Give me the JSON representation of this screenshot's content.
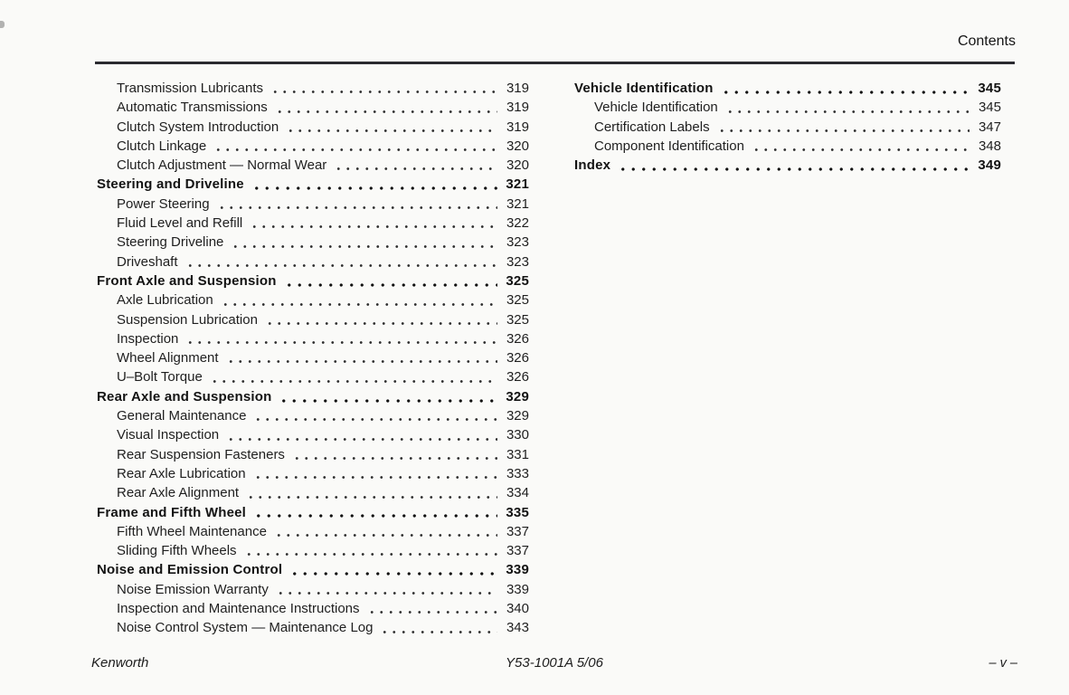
{
  "header": {
    "title": "Contents"
  },
  "toc": {
    "left": [
      {
        "label": "Transmission Lubricants",
        "page": "319",
        "level": "sub"
      },
      {
        "label": "Automatic Transmissions",
        "page": "319",
        "level": "sub"
      },
      {
        "label": "Clutch System Introduction",
        "page": "319",
        "level": "sub"
      },
      {
        "label": "Clutch Linkage",
        "page": "320",
        "level": "sub"
      },
      {
        "label": "Clutch Adjustment — Normal Wear",
        "page": "320",
        "level": "sub"
      },
      {
        "label": "Steering and Driveline",
        "page": "321",
        "level": "section"
      },
      {
        "label": "Power Steering",
        "page": "321",
        "level": "sub"
      },
      {
        "label": "Fluid Level and Refill",
        "page": "322",
        "level": "sub"
      },
      {
        "label": "Steering Driveline",
        "page": "323",
        "level": "sub"
      },
      {
        "label": "Driveshaft",
        "page": "323",
        "level": "sub"
      },
      {
        "label": "Front Axle and Suspension",
        "page": "325",
        "level": "section"
      },
      {
        "label": "Axle Lubrication",
        "page": "325",
        "level": "sub"
      },
      {
        "label": "Suspension Lubrication",
        "page": "325",
        "level": "sub"
      },
      {
        "label": "Inspection",
        "page": "326",
        "level": "sub"
      },
      {
        "label": "Wheel Alignment",
        "page": "326",
        "level": "sub"
      },
      {
        "label": "U–Bolt Torque",
        "page": "326",
        "level": "sub"
      },
      {
        "label": "Rear Axle and Suspension",
        "page": "329",
        "level": "section"
      },
      {
        "label": "General Maintenance",
        "page": "329",
        "level": "sub"
      },
      {
        "label": "Visual Inspection",
        "page": "330",
        "level": "sub"
      },
      {
        "label": "Rear Suspension Fasteners",
        "page": "331",
        "level": "sub"
      },
      {
        "label": "Rear Axle Lubrication",
        "page": "333",
        "level": "sub"
      },
      {
        "label": "Rear Axle Alignment",
        "page": "334",
        "level": "sub"
      },
      {
        "label": "Frame and Fifth Wheel",
        "page": "335",
        "level": "section"
      },
      {
        "label": "Fifth Wheel Maintenance",
        "page": "337",
        "level": "sub"
      },
      {
        "label": "Sliding Fifth Wheels",
        "page": "337",
        "level": "sub"
      },
      {
        "label": "Noise and Emission Control",
        "page": "339",
        "level": "section"
      },
      {
        "label": "Noise Emission Warranty",
        "page": "339",
        "level": "sub"
      },
      {
        "label": "Inspection and Maintenance Instructions",
        "page": "340",
        "level": "sub"
      },
      {
        "label": "Noise Control System — Maintenance Log",
        "page": "343",
        "level": "sub"
      }
    ],
    "right": [
      {
        "label": "Vehicle Identification",
        "page": "345",
        "level": "section"
      },
      {
        "label": "Vehicle Identification",
        "page": "345",
        "level": "sub"
      },
      {
        "label": "Certification Labels",
        "page": "347",
        "level": "sub"
      },
      {
        "label": "Component Identification",
        "page": "348",
        "level": "sub"
      },
      {
        "label": "Index",
        "page": "349",
        "level": "section"
      }
    ]
  },
  "footer": {
    "left": "Kenworth",
    "center": "Y53-1001A 5/06",
    "right": "– v –"
  },
  "colors": {
    "background": "#fafaf8",
    "text": "#1f1f1f",
    "rule": "#2a2a30"
  }
}
